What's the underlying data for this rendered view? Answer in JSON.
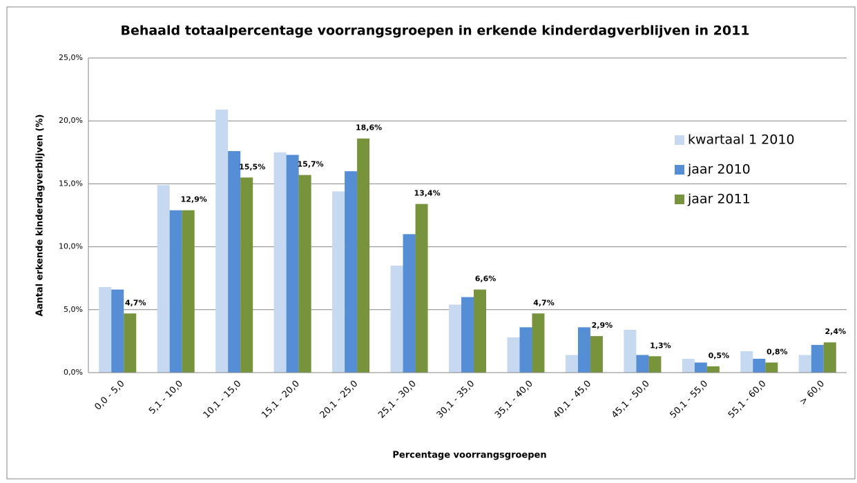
{
  "chart_data": {
    "type": "bar",
    "title": "Behaald totaalpercentage voorrangsgroepen in erkende kinderdagverblijven in 2011",
    "x_label": "Percentage voorrangsgroepen",
    "y_label": "Aantal erkende kinderdagverblijven (%)",
    "categories": [
      "0,0 - 5,0",
      "5,1 - 10,0",
      "10,1 - 15,0",
      "15,1 - 20,0",
      "20,1 - 25,0",
      "25,1 - 30,0",
      "30,1 - 35,0",
      "35,1 - 40,0",
      "40,1 - 45,0",
      "45,1 - 50,0",
      "50,1 - 55,0",
      "55,1 - 60,0",
      "> 60,0"
    ],
    "series": [
      {
        "name": "kwartaal 1 2010",
        "color": "#c6d9f1",
        "values": [
          6.8,
          14.9,
          20.9,
          17.5,
          14.4,
          8.5,
          5.4,
          2.8,
          1.4,
          3.4,
          1.1,
          1.7,
          1.4
        ]
      },
      {
        "name": "jaar 2010",
        "color": "#558ed5",
        "values": [
          6.6,
          12.9,
          17.6,
          17.3,
          16.0,
          11.0,
          6.0,
          3.6,
          3.6,
          1.4,
          0.8,
          1.1,
          2.2
        ]
      },
      {
        "name": "jaar 2011",
        "color": "#77933c",
        "values": [
          4.7,
          12.9,
          15.5,
          15.7,
          18.6,
          13.4,
          6.6,
          4.7,
          2.9,
          1.3,
          0.5,
          0.8,
          2.4
        ],
        "value_labels": [
          "4,7%",
          "12,9%",
          "15,5%",
          "15,7%",
          "18,6%",
          "13,4%",
          "6,6%",
          "4,7%",
          "2,9%",
          "1,3%",
          "0,5%",
          "0,8%",
          "2,4%"
        ]
      }
    ],
    "ylim": [
      0,
      25
    ],
    "yticks": [
      {
        "value": 0,
        "label": "0,0%"
      },
      {
        "value": 5,
        "label": "5,0%"
      },
      {
        "value": 10,
        "label": "10,0%"
      },
      {
        "value": 15,
        "label": "15,0%"
      },
      {
        "value": 20,
        "label": "20,0%"
      },
      {
        "value": 25,
        "label": "25,0%"
      }
    ],
    "grid": true,
    "legend": "right"
  }
}
